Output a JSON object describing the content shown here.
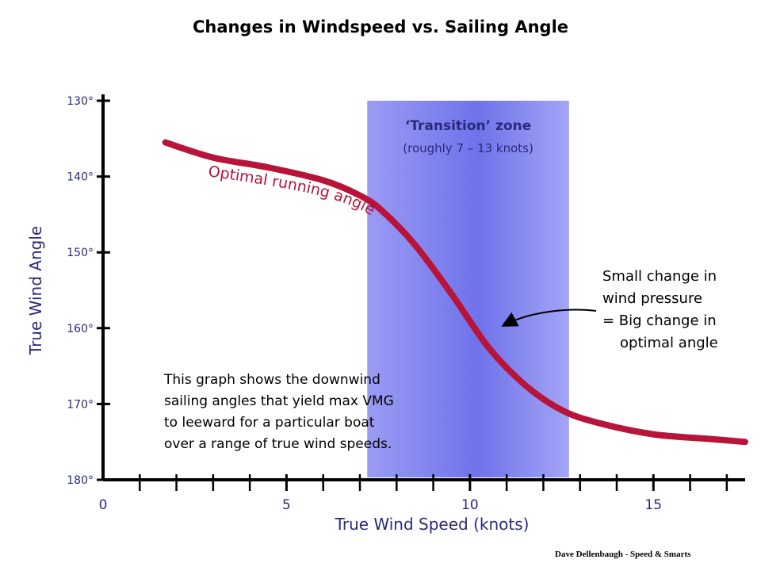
{
  "title": "Changes in Windspeed vs. Sailing Angle",
  "credit": "Dave Dellenbaugh - Speed & Smarts",
  "chart_data": {
    "type": "line",
    "xlabel": "True Wind Speed (knots)",
    "ylabel": "True Wind Angle",
    "xlim": [
      0,
      17.5
    ],
    "ylim": [
      130,
      180
    ],
    "y_inverted": true,
    "grid": false,
    "x_ticks": [
      0,
      5,
      10,
      15
    ],
    "x_tick_labels": [
      "0",
      "5",
      "10",
      "15"
    ],
    "y_ticks": [
      130,
      140,
      150,
      160,
      170,
      180
    ],
    "y_tick_labels": [
      "130°",
      "140°",
      "150°",
      "160°",
      "170°",
      "180°"
    ],
    "colors": {
      "curve": "#b8143a",
      "zone": "#8c8ef2",
      "axis": "#000000",
      "label": "#2a2a7a"
    },
    "series": [
      {
        "name": "Optimal running angle",
        "x": [
          1.7,
          3,
          4.5,
          6,
          7,
          7.6,
          8.5,
          9.5,
          10.5,
          11.5,
          12.5,
          13.5,
          15,
          16.5,
          17.5
        ],
        "y": [
          135.5,
          137.5,
          138.8,
          140.5,
          142.5,
          144.5,
          149,
          155.5,
          162.5,
          167.5,
          170.8,
          172.5,
          174,
          174.6,
          175
        ]
      }
    ],
    "zone": {
      "x_start": 7.2,
      "x_end": 12.7,
      "label": "‘Transition’ zone",
      "sublabel": "(roughly 7 – 13 knots)"
    },
    "annotations": [
      {
        "lines": [
          "Small change in",
          "wind pressure",
          "= Big change in",
          "optimal angle"
        ],
        "arrow_to": {
          "x": 10.8,
          "y": 159.5
        }
      },
      {
        "lines": [
          "This graph shows the downwind",
          "sailing angles that yield max VMG",
          "to leeward for a particular boat",
          "over a range of true wind speeds."
        ]
      }
    ]
  }
}
